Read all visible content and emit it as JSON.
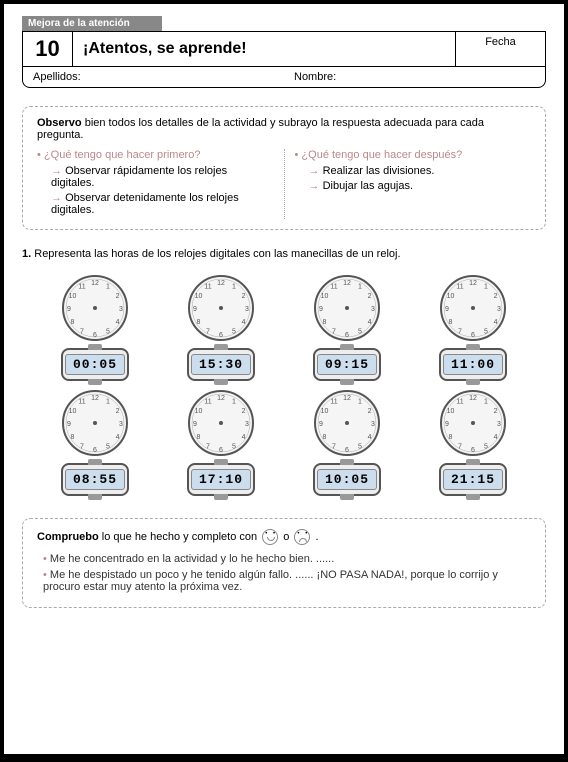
{
  "header": {
    "tag": "Mejora de la atención",
    "number": "10",
    "title": "¡Atentos, se aprende!",
    "fecha_label": "Fecha",
    "apellidos_label": "Apellidos:",
    "nombre_label": "Nombre:"
  },
  "observo": {
    "title_bold": "Observo",
    "title_rest": " bien todos los detalles de la actividad y subrayo la respuesta adecuada para cada pregunta.",
    "q1": "¿Qué tengo que hacer primero?",
    "q1_a1": "Observar rápidamente los relojes digitales.",
    "q1_a2": "Observar detenidamente los relojes digitales.",
    "q2": "¿Qué tengo que hacer después?",
    "q2_a1": "Realizar las divisiones.",
    "q2_a2": "Dibujar las agujas."
  },
  "exercise": {
    "num": "1.",
    "text": "Representa las horas de los relojes digitales con las manecillas de un reloj.",
    "times": [
      "00:05",
      "15:30",
      "09:15",
      "11:00",
      "08:55",
      "17:10",
      "10:05",
      "21:15"
    ]
  },
  "compruebo": {
    "title_bold": "Compruebo",
    "title_rest": " lo que he hecho y completo con ",
    "title_or": " o ",
    "item1": "Me he concentrado en la actividad y lo he hecho bien. ......",
    "item2": "Me he despistado un poco y he tenido algún fallo. ...... ¡NO PASA NADA!, porque lo corrijo y procuro estar muy atento la próxima vez."
  }
}
